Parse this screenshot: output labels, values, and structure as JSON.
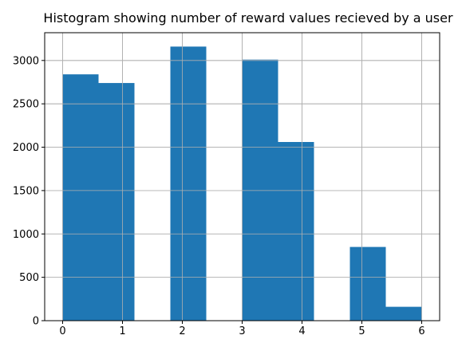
{
  "chart_data": {
    "type": "bar",
    "title": "Histogram showing number of reward values recieved by a user",
    "xlabel": "",
    "ylabel": "",
    "bin_edges": [
      0,
      0.6,
      1.2,
      1.8,
      2.4,
      3.0,
      3.6,
      4.2,
      4.8,
      5.4,
      6.0
    ],
    "values": [
      2840,
      2740,
      0,
      3160,
      0,
      3010,
      2060,
      0,
      850,
      160
    ],
    "xlim": [
      -0.3,
      6.3
    ],
    "ylim": [
      0,
      3320
    ],
    "xticks": [
      "0",
      "1",
      "2",
      "3",
      "4",
      "5",
      "6"
    ],
    "yticks": [
      "0",
      "500",
      "1000",
      "1500",
      "2000",
      "2500",
      "3000"
    ],
    "grid": true,
    "bar_color": "#1f77b4",
    "grid_color": "#b0b0b0"
  }
}
